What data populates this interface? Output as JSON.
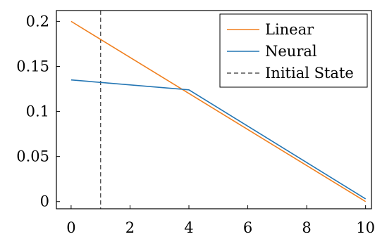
{
  "chart_data": {
    "type": "line",
    "xlim": [
      -0.5,
      10.2
    ],
    "ylim": [
      -0.008,
      0.212
    ],
    "xticks": [
      0,
      2,
      4,
      6,
      8,
      10
    ],
    "xtick_labels": [
      "0",
      "2",
      "4",
      "6",
      "8",
      "10"
    ],
    "yticks": [
      0,
      0.05,
      0.1,
      0.15,
      0.2
    ],
    "ytick_labels": [
      "0",
      "0.05",
      "0.1",
      "0.15",
      "0.2"
    ],
    "grid": false,
    "legend_position": "top-right",
    "series": [
      {
        "name": "Linear",
        "color": "#f07f1e",
        "style": "solid",
        "x": [
          0,
          10
        ],
        "y": [
          0.2,
          0.0
        ]
      },
      {
        "name": "Neural",
        "color": "#2476b4",
        "style": "solid",
        "x": [
          0,
          4,
          10
        ],
        "y": [
          0.135,
          0.124,
          0.003
        ]
      }
    ],
    "vlines": [
      {
        "name": "Initial State",
        "x": 1,
        "color": "#555555",
        "style": "dashed"
      }
    ]
  }
}
